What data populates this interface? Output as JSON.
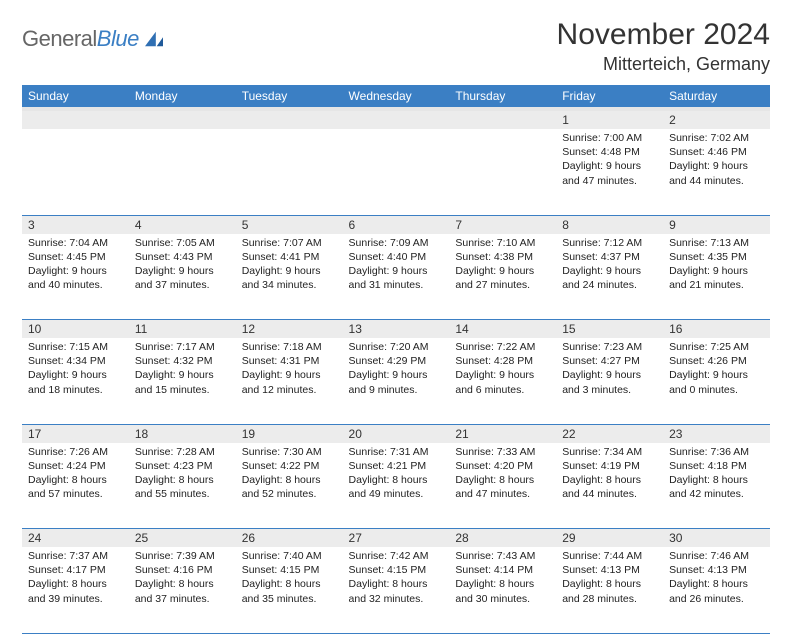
{
  "brand": {
    "name_a": "General",
    "name_b": "Blue"
  },
  "title": "November 2024",
  "location": "Mitterteich, Germany",
  "colors": {
    "header_bg": "#3b7fc4",
    "header_text": "#ffffff",
    "daynum_bg": "#ececec",
    "border": "#3b7fc4",
    "header_sep": "#e6e6e6",
    "body_text": "#222222",
    "page_bg": "#ffffff"
  },
  "day_headers": [
    "Sunday",
    "Monday",
    "Tuesday",
    "Wednesday",
    "Thursday",
    "Friday",
    "Saturday"
  ],
  "weeks": [
    [
      {
        "n": "",
        "sunrise": "",
        "sunset": "",
        "day": ""
      },
      {
        "n": "",
        "sunrise": "",
        "sunset": "",
        "day": ""
      },
      {
        "n": "",
        "sunrise": "",
        "sunset": "",
        "day": ""
      },
      {
        "n": "",
        "sunrise": "",
        "sunset": "",
        "day": ""
      },
      {
        "n": "",
        "sunrise": "",
        "sunset": "",
        "day": ""
      },
      {
        "n": "1",
        "sunrise": "Sunrise: 7:00 AM",
        "sunset": "Sunset: 4:48 PM",
        "day": "Daylight: 9 hours and 47 minutes."
      },
      {
        "n": "2",
        "sunrise": "Sunrise: 7:02 AM",
        "sunset": "Sunset: 4:46 PM",
        "day": "Daylight: 9 hours and 44 minutes."
      }
    ],
    [
      {
        "n": "3",
        "sunrise": "Sunrise: 7:04 AM",
        "sunset": "Sunset: 4:45 PM",
        "day": "Daylight: 9 hours and 40 minutes."
      },
      {
        "n": "4",
        "sunrise": "Sunrise: 7:05 AM",
        "sunset": "Sunset: 4:43 PM",
        "day": "Daylight: 9 hours and 37 minutes."
      },
      {
        "n": "5",
        "sunrise": "Sunrise: 7:07 AM",
        "sunset": "Sunset: 4:41 PM",
        "day": "Daylight: 9 hours and 34 minutes."
      },
      {
        "n": "6",
        "sunrise": "Sunrise: 7:09 AM",
        "sunset": "Sunset: 4:40 PM",
        "day": "Daylight: 9 hours and 31 minutes."
      },
      {
        "n": "7",
        "sunrise": "Sunrise: 7:10 AM",
        "sunset": "Sunset: 4:38 PM",
        "day": "Daylight: 9 hours and 27 minutes."
      },
      {
        "n": "8",
        "sunrise": "Sunrise: 7:12 AM",
        "sunset": "Sunset: 4:37 PM",
        "day": "Daylight: 9 hours and 24 minutes."
      },
      {
        "n": "9",
        "sunrise": "Sunrise: 7:13 AM",
        "sunset": "Sunset: 4:35 PM",
        "day": "Daylight: 9 hours and 21 minutes."
      }
    ],
    [
      {
        "n": "10",
        "sunrise": "Sunrise: 7:15 AM",
        "sunset": "Sunset: 4:34 PM",
        "day": "Daylight: 9 hours and 18 minutes."
      },
      {
        "n": "11",
        "sunrise": "Sunrise: 7:17 AM",
        "sunset": "Sunset: 4:32 PM",
        "day": "Daylight: 9 hours and 15 minutes."
      },
      {
        "n": "12",
        "sunrise": "Sunrise: 7:18 AM",
        "sunset": "Sunset: 4:31 PM",
        "day": "Daylight: 9 hours and 12 minutes."
      },
      {
        "n": "13",
        "sunrise": "Sunrise: 7:20 AM",
        "sunset": "Sunset: 4:29 PM",
        "day": "Daylight: 9 hours and 9 minutes."
      },
      {
        "n": "14",
        "sunrise": "Sunrise: 7:22 AM",
        "sunset": "Sunset: 4:28 PM",
        "day": "Daylight: 9 hours and 6 minutes."
      },
      {
        "n": "15",
        "sunrise": "Sunrise: 7:23 AM",
        "sunset": "Sunset: 4:27 PM",
        "day": "Daylight: 9 hours and 3 minutes."
      },
      {
        "n": "16",
        "sunrise": "Sunrise: 7:25 AM",
        "sunset": "Sunset: 4:26 PM",
        "day": "Daylight: 9 hours and 0 minutes."
      }
    ],
    [
      {
        "n": "17",
        "sunrise": "Sunrise: 7:26 AM",
        "sunset": "Sunset: 4:24 PM",
        "day": "Daylight: 8 hours and 57 minutes."
      },
      {
        "n": "18",
        "sunrise": "Sunrise: 7:28 AM",
        "sunset": "Sunset: 4:23 PM",
        "day": "Daylight: 8 hours and 55 minutes."
      },
      {
        "n": "19",
        "sunrise": "Sunrise: 7:30 AM",
        "sunset": "Sunset: 4:22 PM",
        "day": "Daylight: 8 hours and 52 minutes."
      },
      {
        "n": "20",
        "sunrise": "Sunrise: 7:31 AM",
        "sunset": "Sunset: 4:21 PM",
        "day": "Daylight: 8 hours and 49 minutes."
      },
      {
        "n": "21",
        "sunrise": "Sunrise: 7:33 AM",
        "sunset": "Sunset: 4:20 PM",
        "day": "Daylight: 8 hours and 47 minutes."
      },
      {
        "n": "22",
        "sunrise": "Sunrise: 7:34 AM",
        "sunset": "Sunset: 4:19 PM",
        "day": "Daylight: 8 hours and 44 minutes."
      },
      {
        "n": "23",
        "sunrise": "Sunrise: 7:36 AM",
        "sunset": "Sunset: 4:18 PM",
        "day": "Daylight: 8 hours and 42 minutes."
      }
    ],
    [
      {
        "n": "24",
        "sunrise": "Sunrise: 7:37 AM",
        "sunset": "Sunset: 4:17 PM",
        "day": "Daylight: 8 hours and 39 minutes."
      },
      {
        "n": "25",
        "sunrise": "Sunrise: 7:39 AM",
        "sunset": "Sunset: 4:16 PM",
        "day": "Daylight: 8 hours and 37 minutes."
      },
      {
        "n": "26",
        "sunrise": "Sunrise: 7:40 AM",
        "sunset": "Sunset: 4:15 PM",
        "day": "Daylight: 8 hours and 35 minutes."
      },
      {
        "n": "27",
        "sunrise": "Sunrise: 7:42 AM",
        "sunset": "Sunset: 4:15 PM",
        "day": "Daylight: 8 hours and 32 minutes."
      },
      {
        "n": "28",
        "sunrise": "Sunrise: 7:43 AM",
        "sunset": "Sunset: 4:14 PM",
        "day": "Daylight: 8 hours and 30 minutes."
      },
      {
        "n": "29",
        "sunrise": "Sunrise: 7:44 AM",
        "sunset": "Sunset: 4:13 PM",
        "day": "Daylight: 8 hours and 28 minutes."
      },
      {
        "n": "30",
        "sunrise": "Sunrise: 7:46 AM",
        "sunset": "Sunset: 4:13 PM",
        "day": "Daylight: 8 hours and 26 minutes."
      }
    ]
  ]
}
